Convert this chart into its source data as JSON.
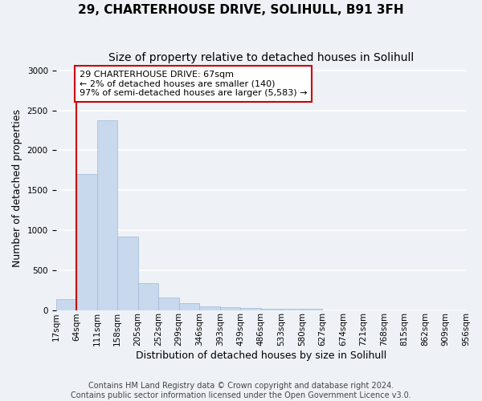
{
  "title": "29, CHARTERHOUSE DRIVE, SOLIHULL, B91 3FH",
  "subtitle": "Size of property relative to detached houses in Solihull",
  "xlabel": "Distribution of detached houses by size in Solihull",
  "ylabel": "Number of detached properties",
  "bin_edges": [
    "17sqm",
    "64sqm",
    "111sqm",
    "158sqm",
    "205sqm",
    "252sqm",
    "299sqm",
    "346sqm",
    "393sqm",
    "439sqm",
    "486sqm",
    "533sqm",
    "580sqm",
    "627sqm",
    "674sqm",
    "721sqm",
    "768sqm",
    "815sqm",
    "862sqm",
    "909sqm",
    "956sqm"
  ],
  "bar_values": [
    140,
    1700,
    2380,
    920,
    340,
    160,
    85,
    50,
    35,
    25,
    20,
    15,
    12,
    0,
    0,
    0,
    0,
    0,
    0,
    0
  ],
  "bar_color": "#c8d9ed",
  "bar_edge_color": "#a0b8d8",
  "property_line_x": 1,
  "vline_color": "#cc0000",
  "ylim": [
    0,
    3050
  ],
  "yticks": [
    0,
    500,
    1000,
    1500,
    2000,
    2500,
    3000
  ],
  "annotation_text": "29 CHARTERHOUSE DRIVE: 67sqm\n← 2% of detached houses are smaller (140)\n97% of semi-detached houses are larger (5,583) →",
  "annotation_box_color": "#ffffff",
  "annotation_box_edge": "#cc0000",
  "footer_line1": "Contains HM Land Registry data © Crown copyright and database right 2024.",
  "footer_line2": "Contains public sector information licensed under the Open Government Licence v3.0.",
  "background_color": "#eef2f7",
  "grid_color": "#ffffff",
  "title_fontsize": 11,
  "subtitle_fontsize": 10,
  "axis_label_fontsize": 9,
  "tick_fontsize": 7.5,
  "footer_fontsize": 7
}
